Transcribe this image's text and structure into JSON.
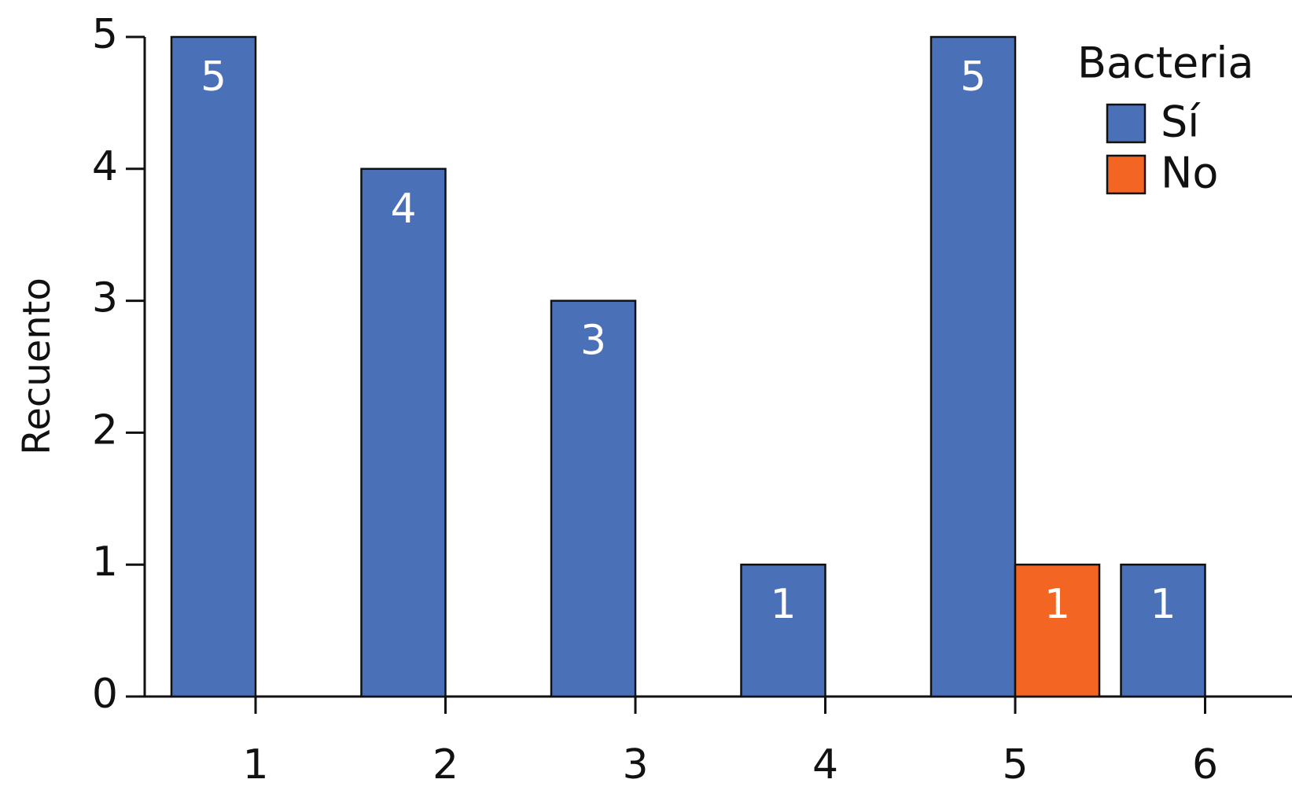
{
  "chart_data": {
    "type": "bar",
    "y_label": "Recuento",
    "legend_title": "Bacteria",
    "categories": [
      "1",
      "2",
      "3",
      "4",
      "5",
      "6"
    ],
    "series": [
      {
        "name": "Sí",
        "color": "#4a70b7",
        "values": [
          5,
          4,
          3,
          1,
          5,
          1
        ]
      },
      {
        "name": "No",
        "color": "#f26522",
        "values": [
          null,
          null,
          null,
          null,
          1,
          null
        ]
      }
    ],
    "ylim": [
      0,
      5
    ],
    "yticks": [
      0,
      1,
      2,
      3,
      4,
      5
    ],
    "legend": "top-right"
  }
}
